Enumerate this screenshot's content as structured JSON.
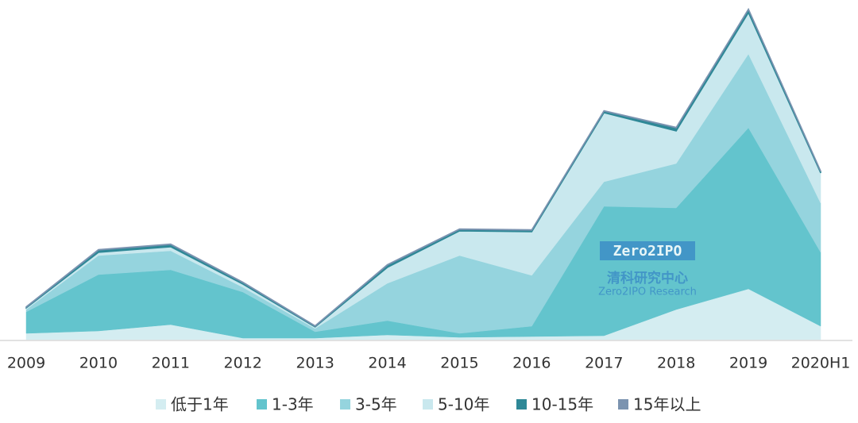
{
  "chart_data": {
    "type": "stacked-area",
    "categories": [
      "2009",
      "2010",
      "2011",
      "2012",
      "2013",
      "2014",
      "2015",
      "2016",
      "2017",
      "2018",
      "2019",
      "2020H1"
    ],
    "series": [
      {
        "name": "低于1年",
        "color": "#d4edf1",
        "values": [
          8,
          11,
          19,
          2,
          2,
          6,
          3,
          4,
          5,
          38,
          64,
          17
        ]
      },
      {
        "name": "1-3年",
        "color": "#63c4cd",
        "values": [
          27,
          71,
          69,
          58,
          8,
          18,
          5,
          13,
          163,
          128,
          203,
          93
        ]
      },
      {
        "name": "3-5年",
        "color": "#95d4de",
        "values": [
          3,
          24,
          24,
          6,
          4,
          47,
          98,
          64,
          31,
          56,
          93,
          62
        ]
      },
      {
        "name": "5-10年",
        "color": "#c9e8ee",
        "values": [
          2,
          4,
          5,
          4,
          2,
          20,
          31,
          55,
          87,
          41,
          52,
          38
        ]
      },
      {
        "name": "10-15年",
        "color": "#2e8897",
        "values": [
          1,
          3,
          3,
          2,
          1,
          3,
          2,
          2,
          2,
          4,
          4,
          2
        ]
      },
      {
        "name": "15年以上",
        "color": "#7b93b0",
        "values": [
          0.5,
          0.5,
          0.5,
          0.5,
          0.5,
          0.5,
          0.5,
          0.5,
          0.5,
          0.5,
          0.5,
          0.5
        ]
      }
    ],
    "ylim": [
      0,
      416
    ],
    "watermark": {
      "logo": "Zero2IPO",
      "name": "清科研究中心",
      "sub": "Zero2IPO Research"
    }
  }
}
